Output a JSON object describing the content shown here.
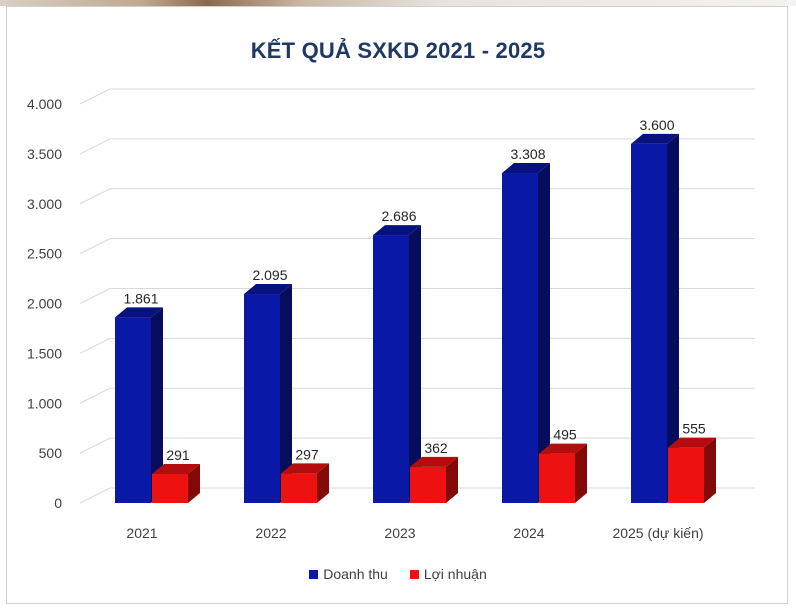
{
  "chart_data": {
    "type": "bar",
    "title": "KẾT QUẢ SXKD 2021 - 2025",
    "categories": [
      "2021",
      "2022",
      "2023",
      "2024",
      "2025 (dự kiến)"
    ],
    "series": [
      {
        "name": "Doanh thu",
        "color": "#0a18a8",
        "values": [
          1861,
          2095,
          2686,
          3308,
          3600
        ],
        "labels": [
          "1.861",
          "2.095",
          "2.686",
          "3.308",
          "3.600"
        ]
      },
      {
        "name": "Lợi nhuận",
        "color": "#ee1111",
        "values": [
          291,
          297,
          362,
          495,
          555
        ],
        "labels": [
          "291",
          "297",
          "362",
          "495",
          "555"
        ]
      }
    ],
    "ylim": [
      0,
      4000
    ],
    "yticks": [
      0,
      500,
      1000,
      1500,
      2000,
      2500,
      3000,
      3500,
      4000
    ],
    "ytick_labels": [
      "0",
      "500",
      "1.000",
      "1.500",
      "2.000",
      "2.500",
      "3.000",
      "3.500",
      "4.000"
    ],
    "grid": true,
    "legend_position": "bottom",
    "style": "3d-column"
  }
}
